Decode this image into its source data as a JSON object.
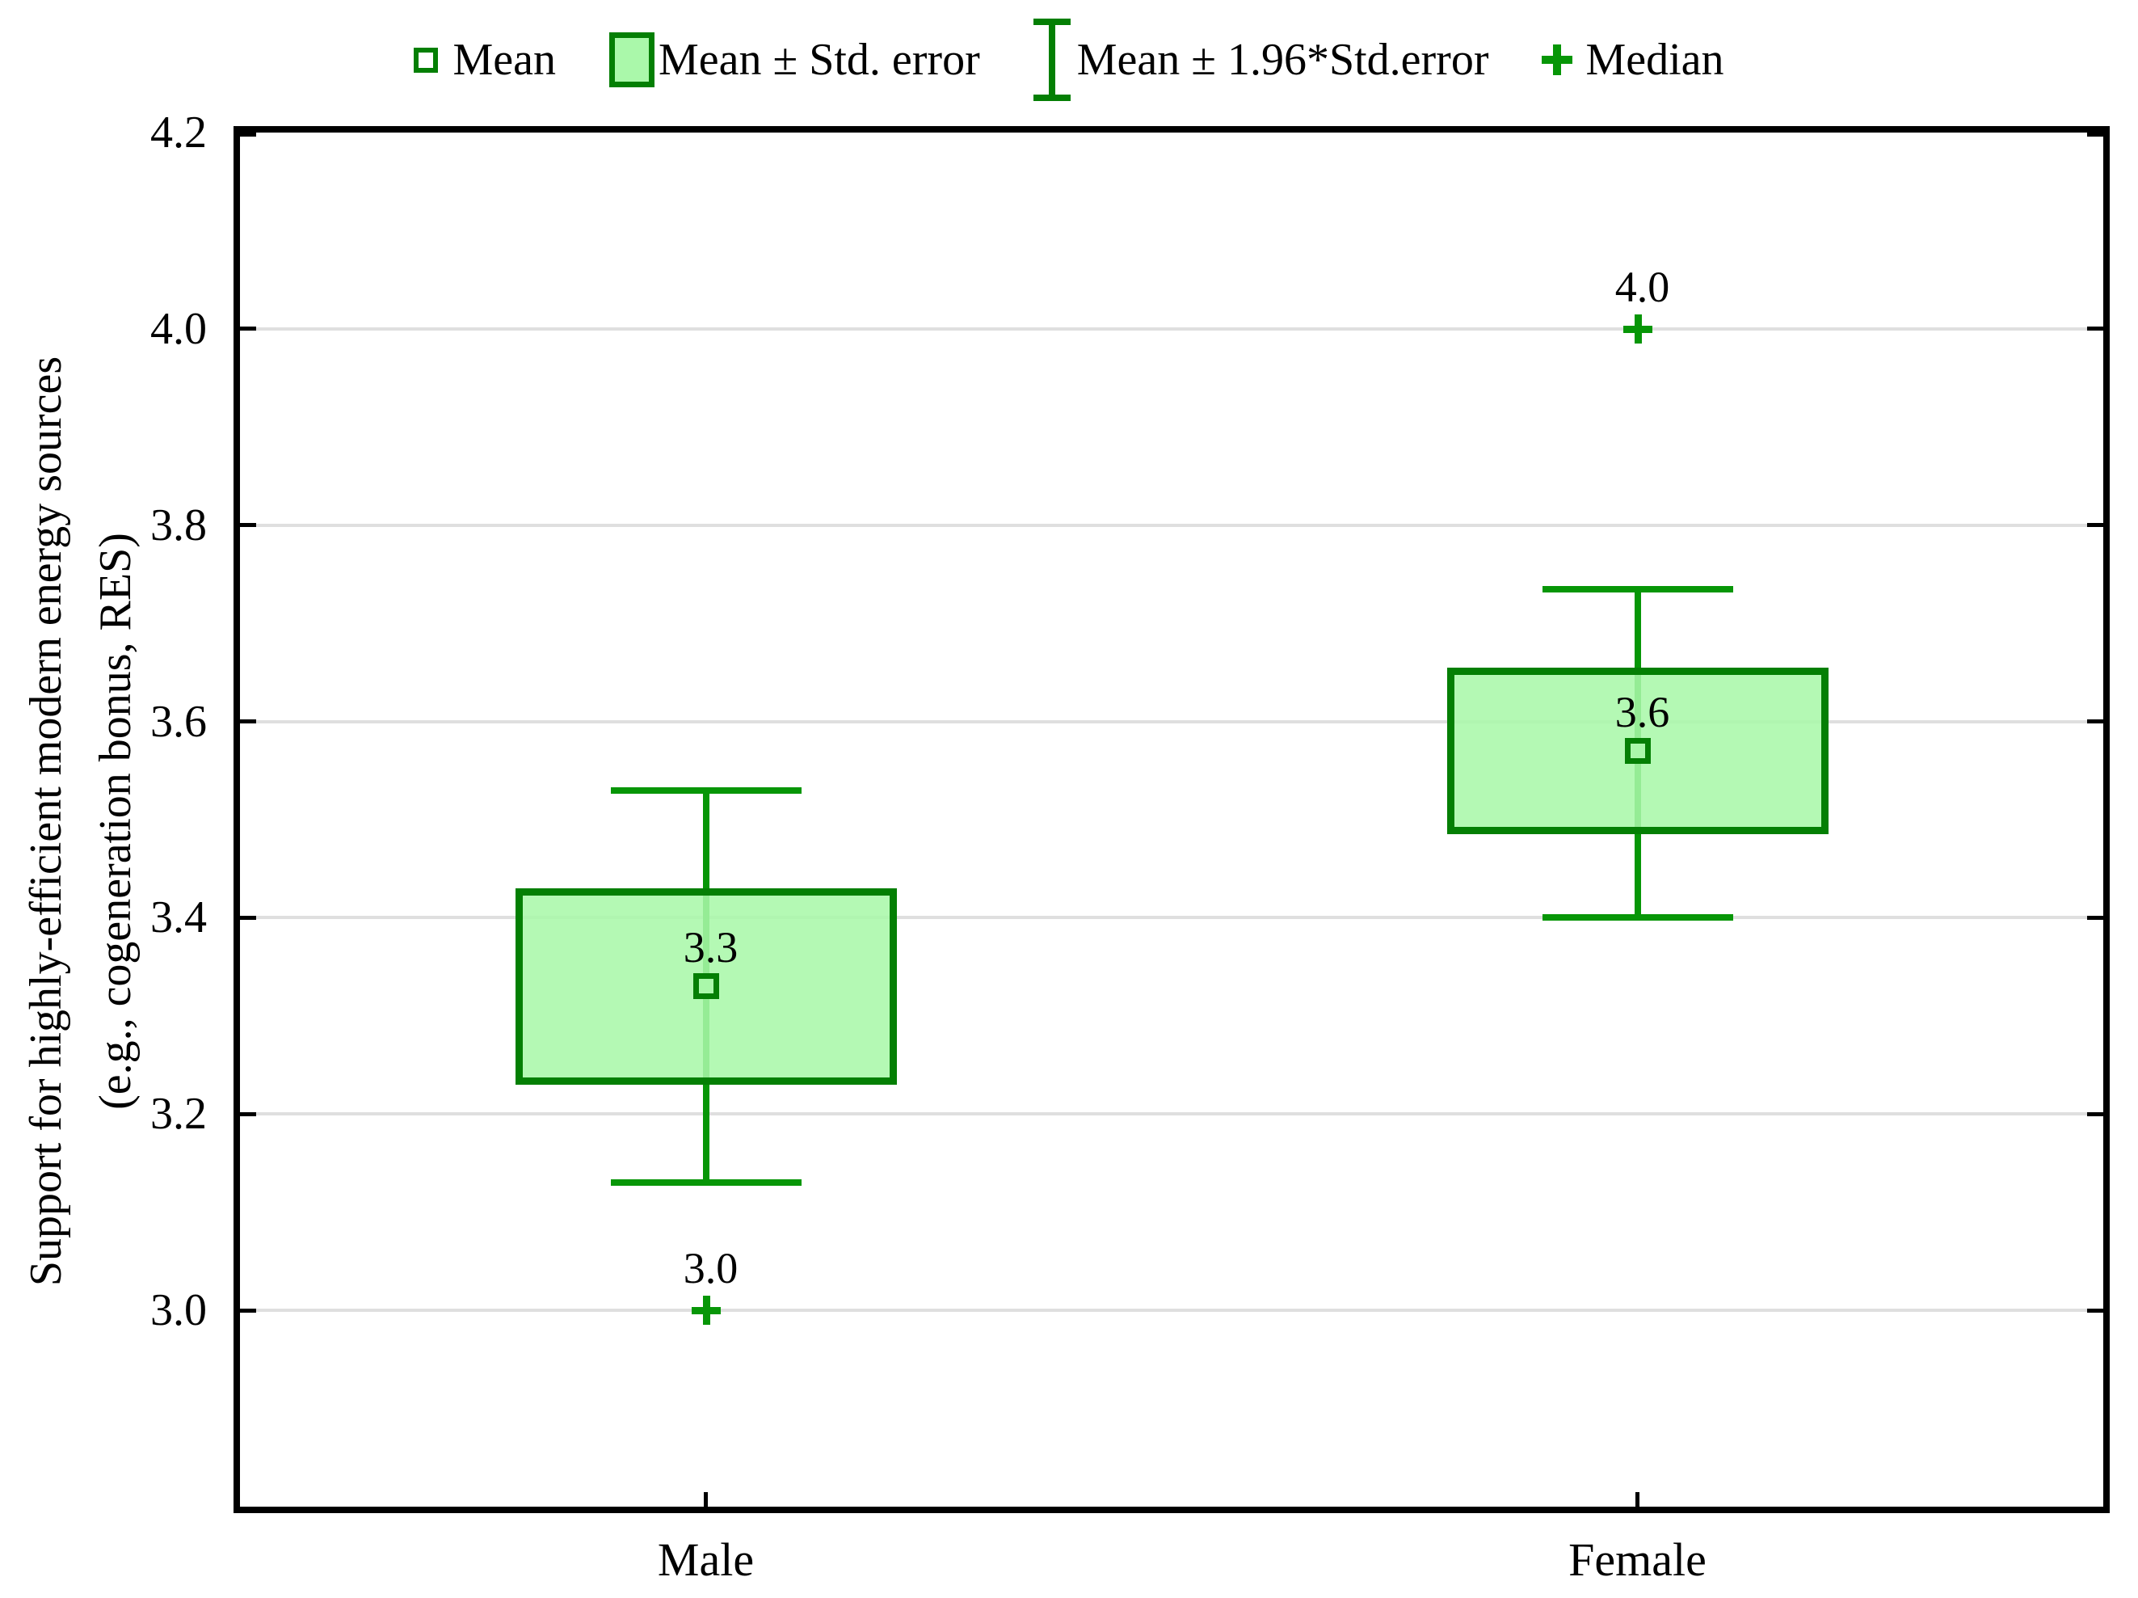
{
  "legend": {
    "items": [
      {
        "label": "Mean",
        "marker": "mean-open-square-icon"
      },
      {
        "label": "Mean ± Std. error",
        "marker": "std-error-box-icon"
      },
      {
        "label": "Mean ± 1.96*Std.error",
        "marker": "ci-whisker-icon"
      },
      {
        "label": "Median",
        "marker": "median-plus-icon"
      }
    ]
  },
  "chart_data": {
    "type": "box",
    "title": "",
    "categories": [
      "Male",
      "Female"
    ],
    "ylabel_lines": [
      "Support for highly-efficient modern energy sources",
      "(e.g., cogeneration bonus, RES)"
    ],
    "ylim": [
      2.8,
      4.2
    ],
    "yticks": [
      4.2,
      4.0,
      3.8,
      3.6,
      3.4,
      3.2,
      3.0
    ],
    "ytick_labels": [
      "4.2",
      "4.0",
      "3.8",
      "3.6",
      "3.4",
      "3.2",
      "3.0"
    ],
    "grid": "horizontal-gridlines",
    "legend_position": "top-center",
    "series": [
      {
        "category": "Male",
        "mean": 3.33,
        "mean_label": "3.3",
        "mean_minus_se": 3.23,
        "mean_plus_se": 3.43,
        "mean_minus_196se": 3.13,
        "mean_plus_196se": 3.53,
        "median": 3.0,
        "median_label": "3.0"
      },
      {
        "category": "Female",
        "mean": 3.57,
        "mean_label": "3.6",
        "mean_minus_se": 3.485,
        "mean_plus_se": 3.655,
        "mean_minus_196se": 3.4,
        "mean_plus_196se": 3.735,
        "median": 4.0,
        "median_label": "4.0"
      }
    ]
  },
  "colors": {
    "green_border": "#047f04",
    "green_fill": "#aaf8aa",
    "marker_green": "#079607",
    "gridline": "#dfdfdf",
    "axis": "#000000",
    "text": "#000000"
  }
}
